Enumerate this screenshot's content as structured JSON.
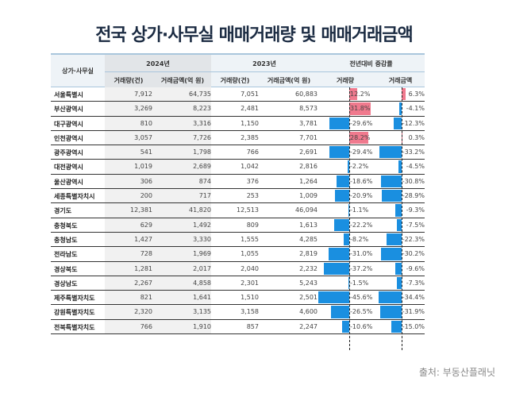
{
  "title": "전국 상가·사무실 매매거래량 및 매매거래금액",
  "source": "출처: 부동산플래닛",
  "colors": {
    "positive": "#f07a8e",
    "negative": "#1a8fe0"
  },
  "chart_data": {
    "type": "table",
    "header": {
      "region": "상가·사무실",
      "y2024": "2024년",
      "y2023": "2023년",
      "change": "전년대비 증감률",
      "vol": "거래량(건)",
      "amt": "거래금액(억 원)",
      "vol_change": "거래량",
      "amt_change": "거래금액"
    },
    "rows": [
      [
        "서울특별시",
        "7,912",
        "64,735",
        "7,051",
        "60,883",
        12.2,
        6.3
      ],
      [
        "부산광역시",
        "3,269",
        "8,223",
        "2,481",
        "8,573",
        31.8,
        -4.1
      ],
      [
        "대구광역시",
        "810",
        "3,316",
        "1,150",
        "3,781",
        -29.6,
        -12.3
      ],
      [
        "인천광역시",
        "3,057",
        "7,726",
        "2,385",
        "7,701",
        28.2,
        0.3
      ],
      [
        "광주광역시",
        "541",
        "1,798",
        "766",
        "2,691",
        -29.4,
        -33.2
      ],
      [
        "대전광역시",
        "1,019",
        "2,689",
        "1,042",
        "2,816",
        -2.2,
        -4.5
      ],
      [
        "울산광역시",
        "306",
        "874",
        "376",
        "1,264",
        -18.6,
        -30.8
      ],
      [
        "세종특별자치시",
        "200",
        "717",
        "253",
        "1,009",
        -20.9,
        -28.9
      ],
      [
        "경기도",
        "12,381",
        "41,820",
        "12,513",
        "46,094",
        -1.1,
        -9.3
      ],
      [
        "충청북도",
        "629",
        "1,492",
        "809",
        "1,613",
        -22.2,
        -7.5
      ],
      [
        "충청남도",
        "1,427",
        "3,330",
        "1,555",
        "4,285",
        -8.2,
        -22.3
      ],
      [
        "전라남도",
        "728",
        "1,969",
        "1,055",
        "2,819",
        -31.0,
        -30.2
      ],
      [
        "경상북도",
        "1,281",
        "2,017",
        "2,040",
        "2,232",
        -37.2,
        -9.6
      ],
      [
        "경상남도",
        "2,267",
        "4,858",
        "2,301",
        "5,243",
        -1.5,
        -7.3
      ],
      [
        "제주특별자치도",
        "821",
        "1,641",
        "1,510",
        "2,501",
        -45.6,
        -34.4
      ],
      [
        "강원특별자치도",
        "2,320",
        "3,135",
        "3,158",
        "4,600",
        -26.5,
        -31.9
      ],
      [
        "전북특별자치도",
        "766",
        "1,910",
        "857",
        "2,247",
        -10.6,
        -15.0
      ]
    ]
  }
}
